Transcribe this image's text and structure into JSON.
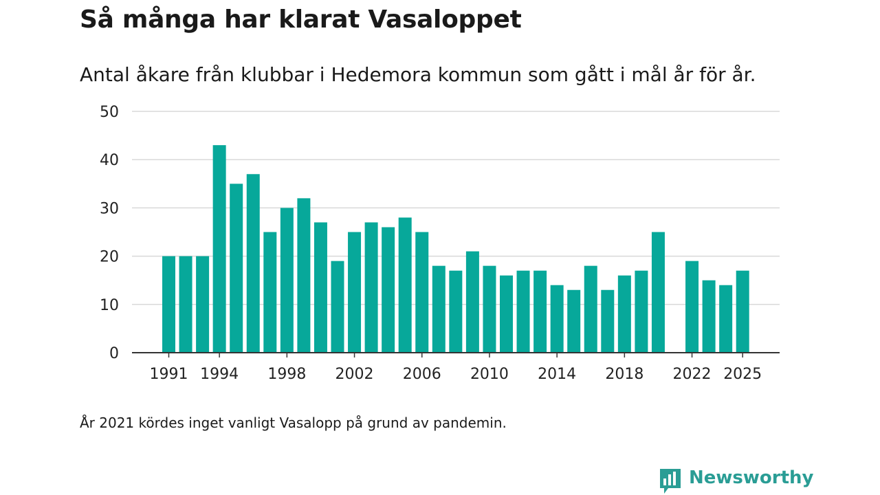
{
  "title": "Så många har klarat Vasaloppet",
  "subtitle": "Antal åkare från klubbar i Hedemora kommun som gått i mål år för år.",
  "footnote": "År 2021 kördes inget vanligt Vasalopp på grund av pandemin.",
  "brand": {
    "name": "Newsworthy",
    "icon": "bar-chart-speech-bubble-icon",
    "color": "#2a9d95"
  },
  "colors": {
    "bar": "#07a89a",
    "grid": "#d9d9d9",
    "axis": "#333333"
  },
  "chart_data": {
    "type": "bar",
    "title": "Så många har klarat Vasaloppet",
    "xlabel": "",
    "ylabel": "",
    "ylim": [
      0,
      50
    ],
    "yticks": [
      0,
      10,
      20,
      30,
      40,
      50
    ],
    "xticks": [
      "1991",
      "1994",
      "1998",
      "2002",
      "2006",
      "2010",
      "2014",
      "2018",
      "2022",
      "2025"
    ],
    "grid": true,
    "categories": [
      "1991",
      "1992",
      "1993",
      "1994",
      "1995",
      "1996",
      "1997",
      "1998",
      "1999",
      "2000",
      "2001",
      "2002",
      "2003",
      "2004",
      "2005",
      "2006",
      "2007",
      "2008",
      "2009",
      "2010",
      "2011",
      "2012",
      "2013",
      "2014",
      "2015",
      "2016",
      "2017",
      "2018",
      "2019",
      "2020",
      "2021",
      "2022",
      "2023",
      "2024",
      "2025"
    ],
    "values": [
      20,
      20,
      20,
      43,
      35,
      37,
      25,
      30,
      32,
      27,
      19,
      25,
      27,
      26,
      28,
      25,
      18,
      17,
      21,
      18,
      16,
      17,
      17,
      14,
      13,
      18,
      13,
      16,
      17,
      25,
      null,
      19,
      15,
      14,
      17
    ]
  }
}
